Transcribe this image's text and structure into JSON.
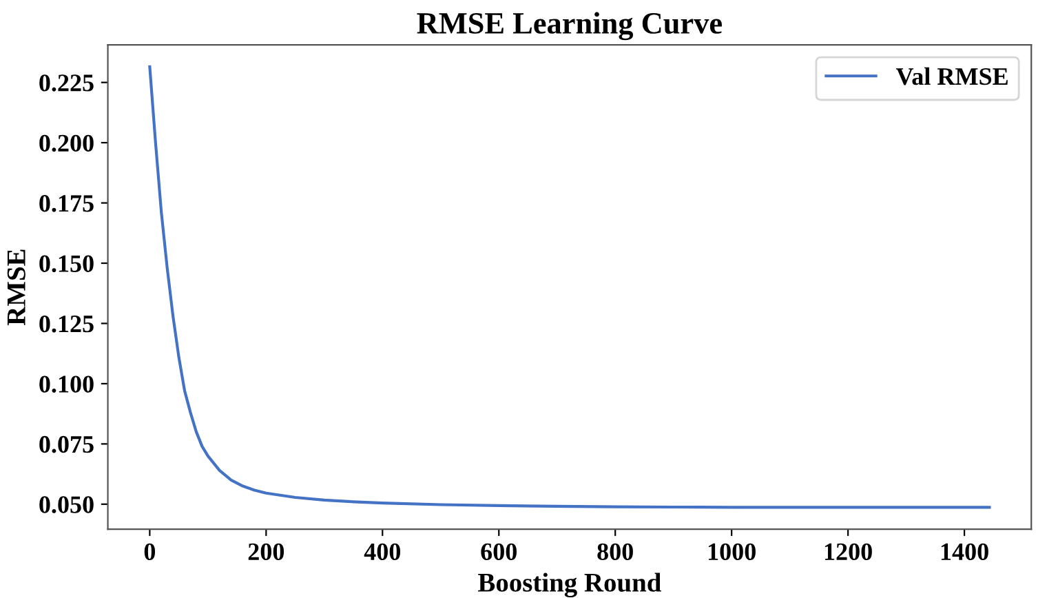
{
  "chart_data": {
    "type": "line",
    "title": "RMSE Learning Curve",
    "xlabel": "Boosting Round",
    "ylabel": "RMSE",
    "series": [
      {
        "name": "Val RMSE",
        "color": "#4472c4",
        "x": [
          0,
          10,
          20,
          30,
          40,
          50,
          60,
          70,
          80,
          90,
          100,
          120,
          140,
          160,
          180,
          200,
          250,
          300,
          350,
          400,
          500,
          600,
          700,
          800,
          900,
          1000,
          1200,
          1443
        ],
        "values": [
          0.2315,
          0.2,
          0.171,
          0.148,
          0.128,
          0.111,
          0.097,
          0.088,
          0.08,
          0.074,
          0.07,
          0.064,
          0.06,
          0.0575,
          0.0558,
          0.0546,
          0.0528,
          0.0517,
          0.051,
          0.0505,
          0.0498,
          0.0494,
          0.0491,
          0.0489,
          0.0488,
          0.0487,
          0.0487,
          0.0487
        ]
      }
    ],
    "xlim": [
      -72,
      1515
    ],
    "xticks": [
      0,
      200,
      400,
      600,
      800,
      1000,
      1200,
      1400
    ],
    "ylim": [
      0.0396,
      0.2406
    ],
    "yticks": [
      {
        "value": 0.05,
        "label": "0.050"
      },
      {
        "value": 0.075,
        "label": "0.075"
      },
      {
        "value": 0.1,
        "label": "0.100"
      },
      {
        "value": 0.125,
        "label": "0.125"
      },
      {
        "value": 0.15,
        "label": "0.150"
      },
      {
        "value": 0.175,
        "label": "0.175"
      },
      {
        "value": 0.2,
        "label": "0.200"
      },
      {
        "value": 0.225,
        "label": "0.225"
      }
    ],
    "grid": false,
    "legend": "top right",
    "marker": "none",
    "line_style": "solid"
  }
}
